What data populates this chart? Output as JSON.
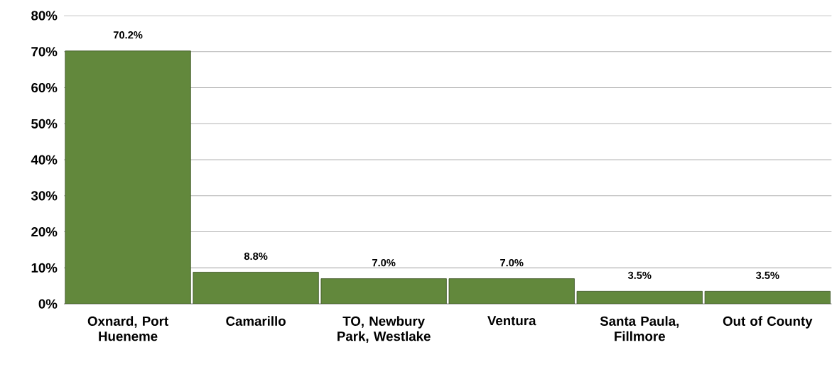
{
  "chart_data": {
    "type": "bar",
    "categories": [
      "Oxnard,  Port Hueneme",
      "Camarillo",
      "TO, Newbury Park, Westlake",
      "Ventura",
      "Santa Paula, Fillmore",
      "Out of County"
    ],
    "values": [
      70.2,
      8.8,
      7.0,
      7.0,
      3.5,
      3.5
    ],
    "value_labels": [
      "70.2%",
      "8.8%",
      "7.0%",
      "7.0%",
      "3.5%",
      "3.5%"
    ],
    "color": "#62883c",
    "ylim": [
      0,
      80
    ],
    "yticks": [
      {
        "value": 0,
        "label": "0%"
      },
      {
        "value": 10,
        "label": "10%"
      },
      {
        "value": 20,
        "label": "20%"
      },
      {
        "value": 30,
        "label": "30%"
      },
      {
        "value": 40,
        "label": "40%"
      },
      {
        "value": 50,
        "label": "50%"
      },
      {
        "value": 60,
        "label": "60%"
      },
      {
        "value": 70,
        "label": "70%"
      },
      {
        "value": 80,
        "label": "80%"
      }
    ],
    "grid": "y"
  }
}
